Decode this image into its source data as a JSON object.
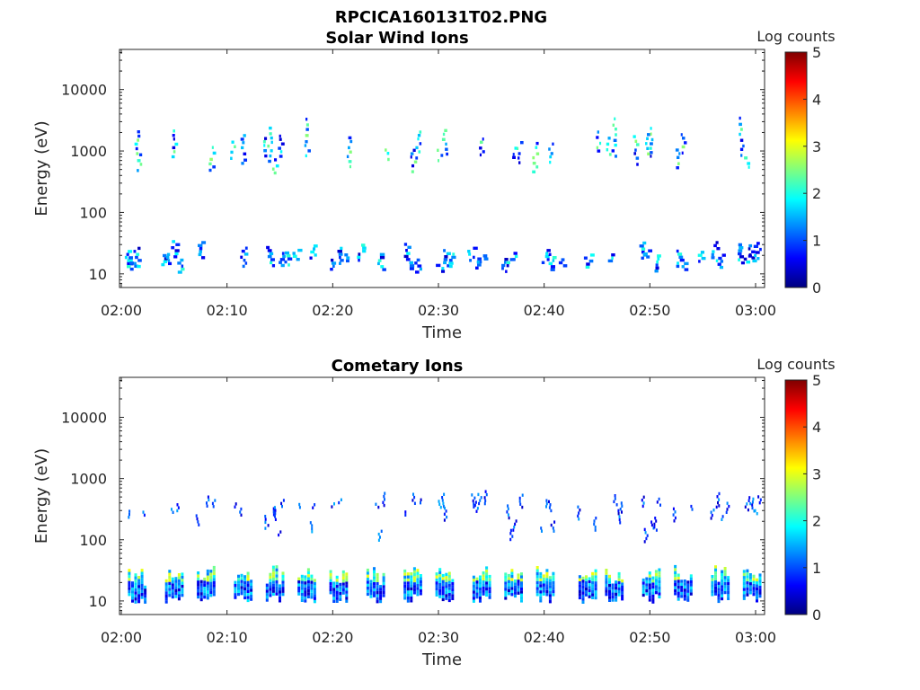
{
  "figure": {
    "filename": "RPCICA160131T02.PNG"
  },
  "colors": {
    "axis": "#262626",
    "colormap": [
      "#00007f",
      "#0000ff",
      "#007fff",
      "#00ffff",
      "#7fff7f",
      "#ffff00",
      "#ff7f00",
      "#ff0000",
      "#7f0000"
    ]
  },
  "chart_data": [
    {
      "type": "heatmap",
      "title": "Solar Wind Ions",
      "xlabel": "Time",
      "ylabel": "Energy (eV)",
      "x_range": [
        "02:00",
        "03:00"
      ],
      "x_ticks": [
        "02:00",
        "02:10",
        "02:20",
        "02:30",
        "02:40",
        "02:50",
        "03:00"
      ],
      "y_scale": "log",
      "y_range": [
        6,
        45000
      ],
      "y_ticks": [
        10,
        100,
        1000,
        10000
      ],
      "y_tick_labels": [
        "10",
        "100",
        "1000",
        "10000"
      ],
      "colorbar": {
        "title": "Log counts",
        "range": [
          0,
          5
        ],
        "ticks": [
          "0",
          "1",
          "2",
          "3",
          "4",
          "5"
        ]
      },
      "grid": false,
      "legend": "none",
      "low_energy_columns_min": [
        0.5,
        0.8,
        1.0,
        1.5,
        4.0,
        4.2,
        5.0,
        5.5,
        7.5,
        11.5,
        14.0,
        15.0,
        15.5,
        16.5,
        18.0,
        20.0,
        20.5,
        21.0,
        22.5,
        24.5,
        27.0,
        27.5,
        28.0,
        30.0,
        30.5,
        31.0,
        33.0,
        33.5,
        34.0,
        36.0,
        36.5,
        37.0,
        40.0,
        40.5,
        41.5,
        44.0,
        46.0,
        49.0,
        49.5,
        50.5,
        52.5,
        53.0,
        54.5,
        56.0,
        56.5,
        58.5,
        59.0,
        59.5,
        60.0
      ],
      "high_energy_columns_min": [
        1.5,
        1.7,
        5.0,
        8.5,
        10.5,
        11.5,
        13.5,
        14.0,
        14.5,
        15.0,
        17.5,
        21.5,
        25.0,
        27.5,
        28.0,
        30.0,
        30.5,
        34.0,
        37.0,
        37.5,
        39.0,
        40.5,
        45.0,
        46.0,
        46.5,
        48.5,
        49.5,
        50.0,
        52.5,
        53.0,
        58.5,
        59.0
      ]
    },
    {
      "type": "heatmap",
      "title": "Cometary Ions",
      "xlabel": "Time",
      "ylabel": "Energy (eV)",
      "x_range": [
        "02:00",
        "03:00"
      ],
      "x_ticks": [
        "02:00",
        "02:10",
        "02:20",
        "02:30",
        "02:40",
        "02:50",
        "03:00"
      ],
      "y_scale": "log",
      "y_range": [
        6,
        45000
      ],
      "y_ticks": [
        10,
        100,
        1000,
        10000
      ],
      "y_tick_labels": [
        "10",
        "100",
        "1000",
        "10000"
      ],
      "colorbar": {
        "title": "Log counts",
        "range": [
          0,
          5
        ],
        "ticks": [
          "0",
          "1",
          "2",
          "3",
          "4",
          "5"
        ]
      },
      "grid": false,
      "legend": "none",
      "cluster_centers_min": [
        1.5,
        5.0,
        8.0,
        11.5,
        14.5,
        17.5,
        20.5,
        24.0,
        27.5,
        30.5,
        34.0,
        37.0,
        40.0,
        44.0,
        46.5,
        50.0,
        53.0,
        56.5,
        59.5
      ],
      "peak_energy_ev": [
        20,
        40
      ]
    }
  ]
}
